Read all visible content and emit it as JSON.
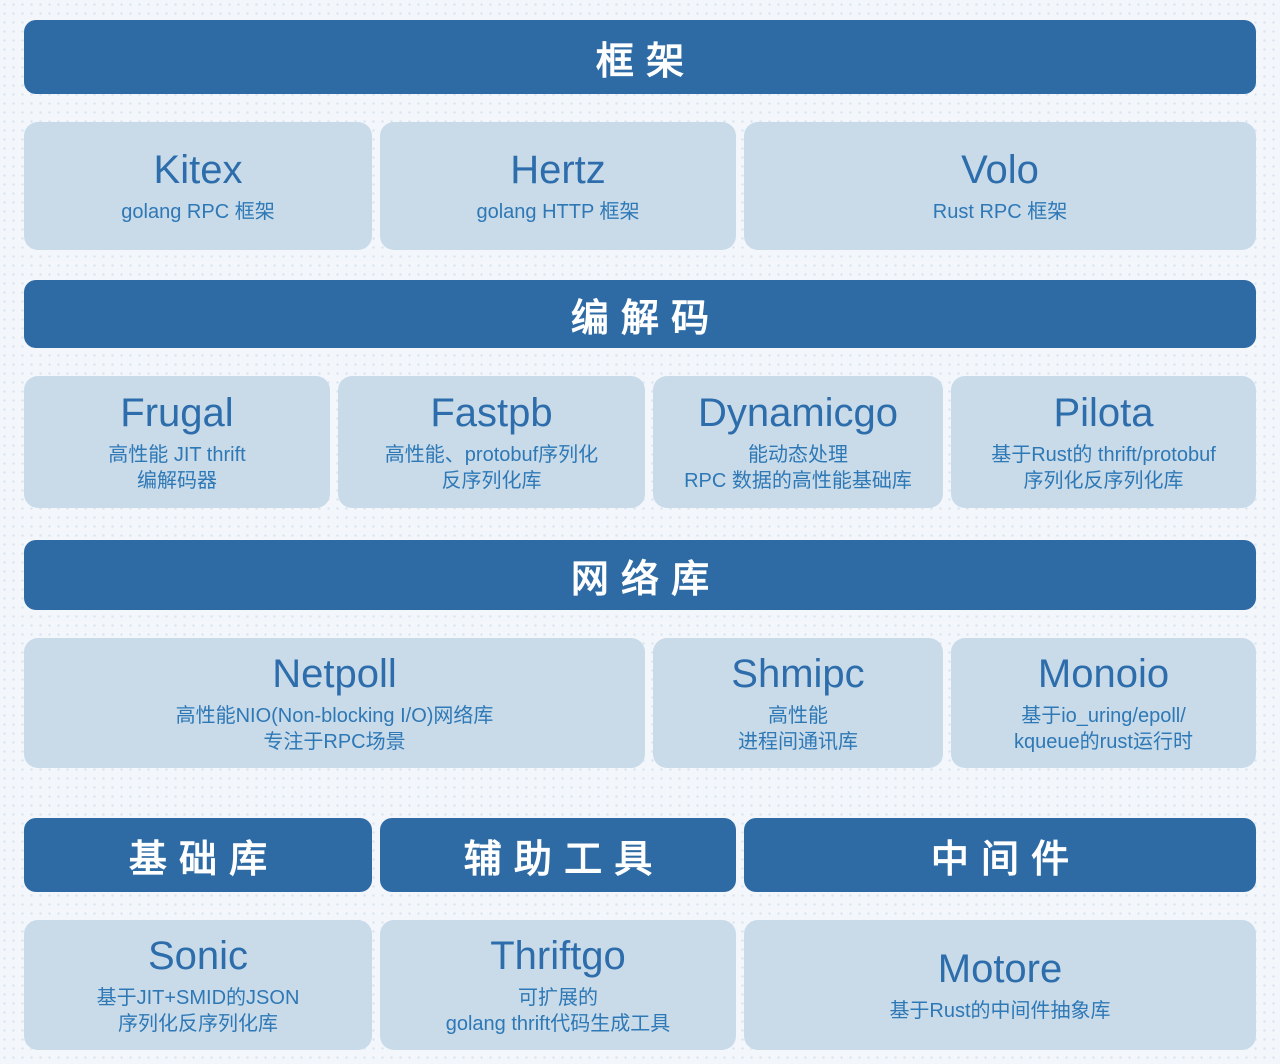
{
  "colors": {
    "background": "#f3f6fb",
    "dot": "#dae4f0",
    "band_background": "#2e6ba5",
    "band_text": "#ffffff",
    "card_background": "#c9dbe9",
    "card_title": "#2d6dab",
    "card_description": "#2e78b6"
  },
  "sections": [
    {
      "header": "框架",
      "cards": [
        {
          "name": "Kitex",
          "lines": [
            "golang RPC 框架"
          ]
        },
        {
          "name": "Hertz",
          "lines": [
            "golang HTTP 框架"
          ]
        },
        {
          "name": "Volo",
          "lines": [
            "Rust RPC 框架"
          ]
        }
      ]
    },
    {
      "header": "编解码",
      "cards": [
        {
          "name": "Frugal",
          "lines": [
            "高性能 JIT thrift",
            "编解码器"
          ]
        },
        {
          "name": "Fastpb",
          "lines": [
            "高性能、protobuf序列化",
            "反序列化库"
          ]
        },
        {
          "name": "Dynamicgo",
          "lines": [
            "能动态处理",
            "RPC 数据的高性能基础库"
          ]
        },
        {
          "name": "Pilota",
          "lines": [
            "基于Rust的 thrift/protobuf",
            "序列化反序列化库"
          ]
        }
      ]
    },
    {
      "header": "网络库",
      "cards": [
        {
          "name": "Netpoll",
          "lines": [
            "高性能NIO(Non-blocking I/O)网络库",
            "专注于RPC场景"
          ]
        },
        {
          "name": "Shmipc",
          "lines": [
            "高性能",
            "进程间通讯库"
          ]
        },
        {
          "name": "Monoio",
          "lines": [
            "基于io_uring/epoll/",
            "kqueue的rust运行时"
          ]
        }
      ]
    }
  ],
  "bottom_groups": [
    {
      "header": "基础库",
      "card": {
        "name": "Sonic",
        "lines": [
          "基于JIT+SMID的JSON",
          "序列化反序列化库"
        ]
      }
    },
    {
      "header": "辅助工具",
      "card": {
        "name": "Thriftgo",
        "lines": [
          "可扩展的",
          "golang thrift代码生成工具"
        ]
      }
    },
    {
      "header": "中间件",
      "card": {
        "name": "Motore",
        "lines": [
          "基于Rust的中间件抽象库"
        ]
      }
    }
  ]
}
